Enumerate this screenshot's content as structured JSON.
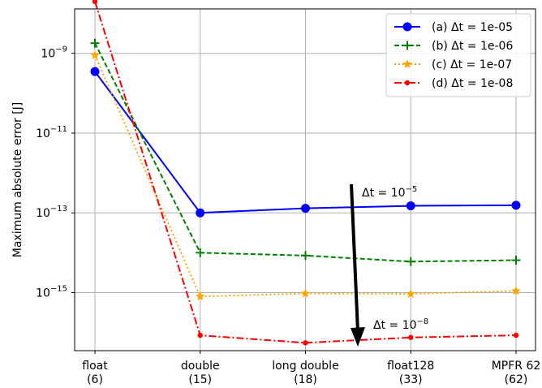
{
  "chart_data": {
    "type": "line",
    "ylabel": "Maximum absolute error [J]",
    "xlabel": "",
    "y_scale": "log",
    "ylim": [
      3.5e-17,
      1.3e-08
    ],
    "y_ticks": [
      {
        "value": 1e-09,
        "base": "10",
        "exp": "−9"
      },
      {
        "value": 1e-11,
        "base": "10",
        "exp": "−11"
      },
      {
        "value": 1e-13,
        "base": "10",
        "exp": "−13"
      },
      {
        "value": 1e-15,
        "base": "10",
        "exp": "−15"
      }
    ],
    "categories": [
      {
        "line1": "float",
        "line2": "(6)"
      },
      {
        "line1": "double",
        "line2": "(15)"
      },
      {
        "line1": "long double",
        "line2": "(18)"
      },
      {
        "line1": "float128",
        "line2": "(33)"
      },
      {
        "line1": "MPFR 62",
        "line2": "(62)"
      }
    ],
    "grid": true,
    "legend_position": "top-right",
    "series": [
      {
        "name": "(a) Δt = 1e-05",
        "color": "#0000ff",
        "style": "solid",
        "marker": "circle",
        "values": [
          3.5e-10,
          1e-13,
          1.3e-13,
          1.5e-13,
          1.55e-13
        ]
      },
      {
        "name": "(b) Δt = 1e-06",
        "color": "#008000",
        "style": "dashed",
        "marker": "plus",
        "values": [
          1.8e-09,
          1e-14,
          8.5e-15,
          6e-15,
          6.5e-15
        ]
      },
      {
        "name": "(c) Δt = 1e-07",
        "color": "#ffa500",
        "style": "dotted",
        "marker": "star",
        "values": [
          9e-10,
          8e-16,
          9.5e-16,
          9.3e-16,
          1.1e-15
        ]
      },
      {
        "name": "(d) Δt = 1e-08",
        "color": "#ff0000",
        "style": "dashdot",
        "marker": "dot",
        "values": [
          2e-08,
          8.5e-17,
          5.5e-17,
          7.5e-17,
          8.5e-17
        ]
      }
    ],
    "annotations": [
      {
        "text": "Δt = 10",
        "sup": "−5"
      },
      {
        "text": "Δt = 10",
        "sup": "−8"
      }
    ]
  }
}
